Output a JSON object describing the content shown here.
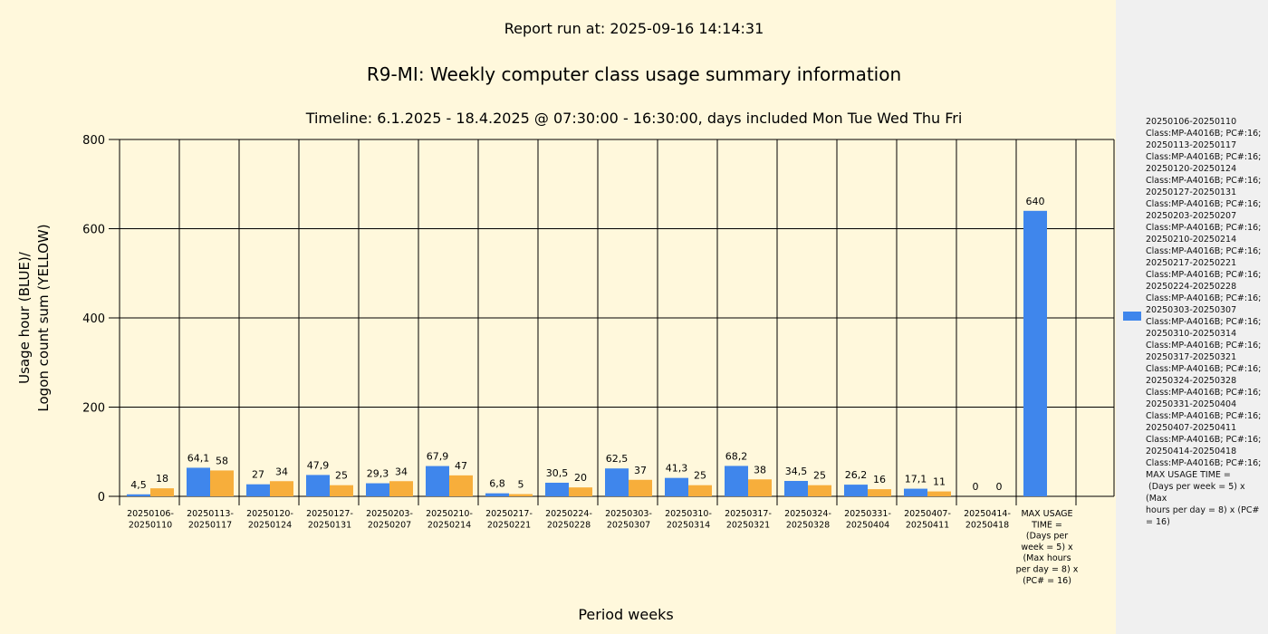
{
  "report_run": "Report run at: 2025-09-16 14:14:31",
  "colors": {
    "usage": "#3f86ec",
    "logon": "#f7ae3b",
    "background": "#fff8dc",
    "legend_bg": "#f0f0f0"
  },
  "chart_data": {
    "type": "bar",
    "title": "R9-MI: Weekly computer class usage summary information",
    "subtitle": "Timeline:  6.1.2025  - 18.4.2025  @  07:30:00 -  16:30:00, days included Mon Tue Wed Thu Fri",
    "xlabel": "Period weeks",
    "ylabel_line1": "Usage hour (BLUE)/",
    "ylabel_line2": "Logon count sum (YELLOW)",
    "ylim": [
      0,
      800
    ],
    "yticks": [
      0,
      200,
      400,
      600,
      800
    ],
    "grid": true,
    "legend_position": "right",
    "categories": [
      "20250106-\n20250110",
      "20250113-\n20250117",
      "20250120-\n20250124",
      "20250127-\n20250131",
      "20250203-\n20250207",
      "20250210-\n20250214",
      "20250217-\n20250221",
      "20250224-\n20250228",
      "20250303-\n20250307",
      "20250310-\n20250314",
      "20250317-\n20250321",
      "20250324-\n20250328",
      "20250331-\n20250404",
      "20250407-\n20250411",
      "20250414-\n20250418",
      "MAX USAGE\nTIME =\n(Days per\nweek = 5) x\n(Max hours\nper day = 8) x\n(PC# = 16)"
    ],
    "series": [
      {
        "values": [
          4.5,
          64.1,
          27,
          47.9,
          29.3,
          67.9,
          6.8,
          30.5,
          62.5,
          41.3,
          68.2,
          34.5,
          26.2,
          17.1,
          0,
          640
        ],
        "labels": [
          "4,5",
          "64,1",
          "27",
          "47,9",
          "29,3",
          "67,9",
          "6,8",
          "30,5",
          "62,5",
          "41,3",
          "68,2",
          "34,5",
          "26,2",
          "17,1",
          "0",
          "640"
        ]
      },
      {
        "values": [
          18,
          58,
          34,
          25,
          34,
          47,
          5,
          20,
          37,
          25,
          38,
          25,
          16,
          11,
          0,
          null
        ],
        "labels": [
          "18",
          "58",
          "34",
          "25",
          "34",
          "47",
          "5",
          "20",
          "37",
          "25",
          "38",
          "25",
          "16",
          "11",
          "0",
          ""
        ]
      }
    ],
    "legend_text": "20250106-20250110\nClass:MP-A4016B; PC#:16;\n20250113-20250117\nClass:MP-A4016B; PC#:16;\n20250120-20250124\nClass:MP-A4016B; PC#:16;\n20250127-20250131\nClass:MP-A4016B; PC#:16;\n20250203-20250207\nClass:MP-A4016B; PC#:16;\n20250210-20250214\nClass:MP-A4016B; PC#:16;\n20250217-20250221\nClass:MP-A4016B; PC#:16;\n20250224-20250228\nClass:MP-A4016B; PC#:16;\n20250303-20250307\nClass:MP-A4016B; PC#:16;\n20250310-20250314\nClass:MP-A4016B; PC#:16;\n20250317-20250321\nClass:MP-A4016B; PC#:16;\n20250324-20250328\nClass:MP-A4016B; PC#:16;\n20250331-20250404\nClass:MP-A4016B; PC#:16;\n20250407-20250411\nClass:MP-A4016B; PC#:16;\n20250414-20250418\nClass:MP-A4016B; PC#:16;\nMAX USAGE TIME =\n (Days per week = 5) x (Max\nhours per day = 8) x (PC#\n= 16)"
  }
}
